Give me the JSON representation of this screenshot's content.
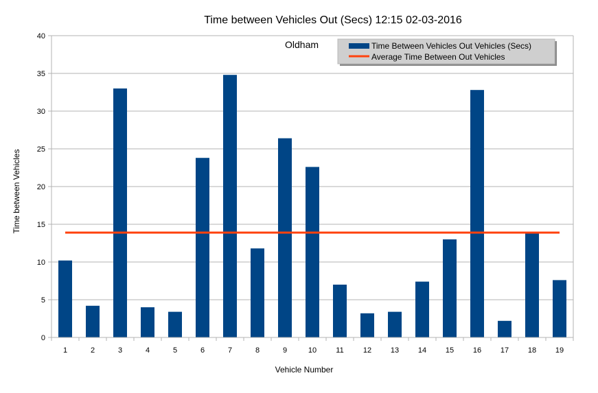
{
  "chart_data": {
    "type": "bar",
    "title": "Time between Vehicles Out (Secs)  12:15 02-03-2016",
    "annotation": "Oldham",
    "xlabel": "Vehicle Number",
    "ylabel": "Time between Vehicles",
    "categories": [
      "1",
      "2",
      "3",
      "4",
      "5",
      "6",
      "7",
      "8",
      "9",
      "10",
      "11",
      "12",
      "13",
      "14",
      "15",
      "16",
      "17",
      "18",
      "19"
    ],
    "series": [
      {
        "name": "Time Between Vehicles Out Vehicles (Secs)",
        "type": "bar",
        "color": "#004586",
        "values": [
          10.2,
          4.2,
          33.0,
          4.0,
          3.4,
          23.8,
          34.8,
          11.8,
          26.4,
          22.6,
          7.0,
          3.2,
          3.4,
          7.4,
          13.0,
          32.8,
          2.2,
          13.9,
          7.6
        ]
      },
      {
        "name": "Average Time Between Out Vehicles",
        "type": "line",
        "color": "#ff420e",
        "value": 13.9
      }
    ],
    "ylim": [
      0,
      40
    ],
    "yticks": [
      0,
      5,
      10,
      15,
      20,
      25,
      30,
      35,
      40
    ],
    "ytick_labels": [
      "0",
      "5",
      "10",
      "15",
      "20",
      "25",
      "30",
      "35",
      "40"
    ],
    "grid": true,
    "legend_position": "top-right"
  }
}
